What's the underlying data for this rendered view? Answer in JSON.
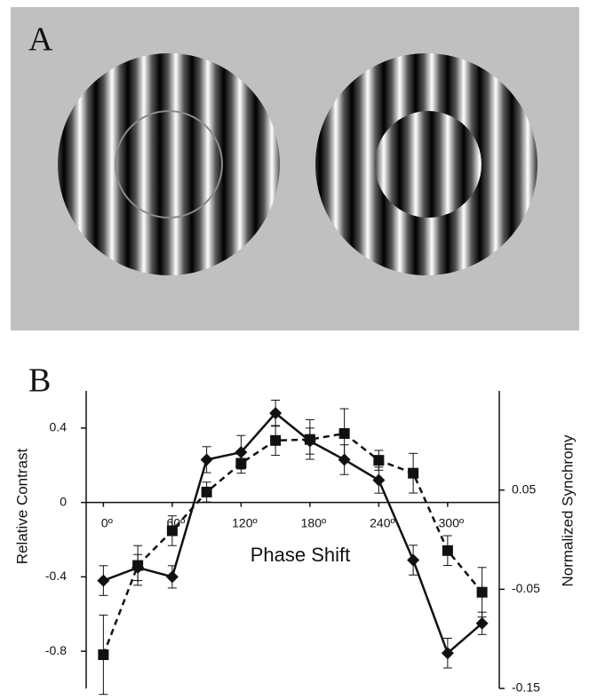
{
  "panel_a": {
    "label": "A"
  },
  "chart_data": {
    "type": "line",
    "panel_label": "B",
    "x_label": "Phase Shift",
    "y_label": "Relative Contrast",
    "y2_label": "Normalized Synchrony",
    "x": [
      0,
      30,
      60,
      90,
      120,
      150,
      180,
      210,
      240,
      270,
      300,
      330
    ],
    "xlim": [
      -15,
      345
    ],
    "xticks": [
      {
        "value": 0,
        "label": "0º"
      },
      {
        "value": 60,
        "label": "60º"
      },
      {
        "value": 120,
        "label": "120º"
      },
      {
        "value": 180,
        "label": "180º"
      },
      {
        "value": 240,
        "label": "240º"
      },
      {
        "value": 300,
        "label": "300º"
      }
    ],
    "ylim": [
      -1,
      0.6
    ],
    "yticks": [
      -0.8,
      -0.4,
      0,
      0.4
    ],
    "y2lim": [
      -0.15,
      0.15
    ],
    "y2ticks": [
      -0.15,
      -0.05,
      0.05
    ],
    "series": [
      {
        "color": "#111111",
        "marker": "diamond",
        "dashed": false,
        "values": [
          -0.42,
          -0.35,
          -0.4,
          0.23,
          0.27,
          0.48,
          0.33,
          0.23,
          0.12,
          -0.31,
          -0.81,
          -0.65
        ],
        "errors": [
          0.08,
          0.07,
          0.06,
          0.07,
          0.09,
          0.07,
          0.07,
          0.08,
          0.07,
          0.08,
          0.08,
          0.06
        ]
      },
      {
        "color": "#111111",
        "marker": "square",
        "dashed": true,
        "axis": "y2",
        "values": [
          -0.116,
          -0.026,
          0.009,
          0.048,
          0.077,
          0.1,
          0.101,
          0.107,
          0.08,
          0.067,
          -0.011,
          -0.053
        ],
        "errors": [
          0.04,
          0.02,
          0.015,
          0.01,
          0.01,
          0.015,
          0.02,
          0.025,
          0.01,
          0.02,
          0.015,
          0.025
        ]
      }
    ]
  }
}
